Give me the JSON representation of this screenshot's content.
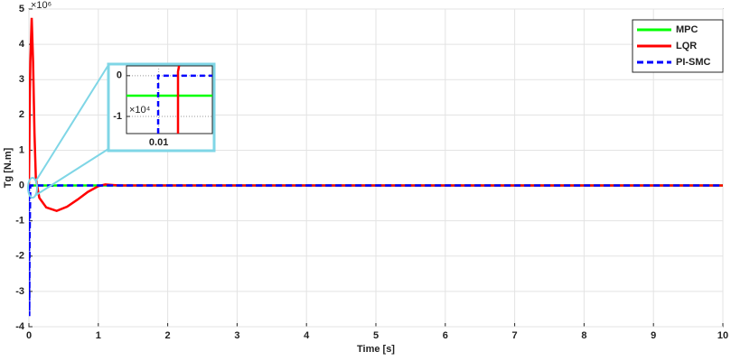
{
  "chart_data": [
    {
      "type": "line",
      "y_exponent": "×10⁶",
      "xlabel": "Time [s]",
      "ylabel": "Tg [N.m]",
      "x": [
        0,
        0.005,
        0.01,
        0.02,
        0.04,
        0.06,
        0.08,
        0.1,
        0.15,
        0.25,
        0.4,
        0.55,
        0.7,
        0.85,
        1.0,
        1.1,
        1.3,
        10
      ],
      "series": [
        {
          "name": "MPC",
          "color": "#00ff00",
          "style": "solid",
          "values": [
            0,
            0,
            0,
            0,
            0,
            0,
            0,
            0,
            0,
            0,
            0,
            0,
            0,
            0,
            0,
            0,
            0,
            0
          ]
        },
        {
          "name": "LQR",
          "color": "#ff0000",
          "style": "solid",
          "values": [
            0,
            0.8,
            2,
            3.5,
            4.75,
            3.5,
            1.5,
            0.2,
            -0.35,
            -0.62,
            -0.72,
            -0.6,
            -0.4,
            -0.18,
            -0.02,
            0.03,
            0,
            0
          ]
        },
        {
          "name": "PI-SMC",
          "color": "#0000ff",
          "style": "dashed",
          "values": [
            0,
            -3.7,
            -1.5,
            0,
            0,
            0,
            0,
            0,
            0,
            0,
            0,
            0,
            0,
            0,
            0,
            0,
            0,
            0
          ]
        }
      ],
      "xlim": [
        0,
        10
      ],
      "ylim": [
        -4,
        5
      ],
      "xticks": [
        0,
        1,
        2,
        3,
        4,
        5,
        6,
        7,
        8,
        9,
        10
      ],
      "yticks": [
        -4,
        -3,
        -2,
        -1,
        0,
        1,
        2,
        3,
        4,
        5
      ],
      "grid": true,
      "legend": "top-right"
    },
    {
      "type": "line",
      "y_exponent": "×10⁴",
      "series": [
        {
          "color": "#00ff00",
          "style": "solid",
          "x": [
            0.007,
            0.015
          ],
          "values": [
            -0.49,
            -0.49
          ]
        },
        {
          "color": "#0000ff",
          "style": "dashed",
          "x": [
            0.00995,
            0.00995,
            0.015
          ],
          "values": [
            -1.42,
            0,
            0
          ]
        },
        {
          "color": "#ff0000",
          "style": "solid",
          "x": [
            0.0118,
            0.0118,
            0.0119
          ],
          "values": [
            -1.42,
            0.1,
            0.24
          ]
        }
      ],
      "xlim": [
        0.007,
        0.015
      ],
      "ylim": [
        -1.42,
        0.24
      ],
      "xticks": [
        0.01
      ],
      "yticks": [
        -1,
        0
      ],
      "grid": true
    }
  ]
}
